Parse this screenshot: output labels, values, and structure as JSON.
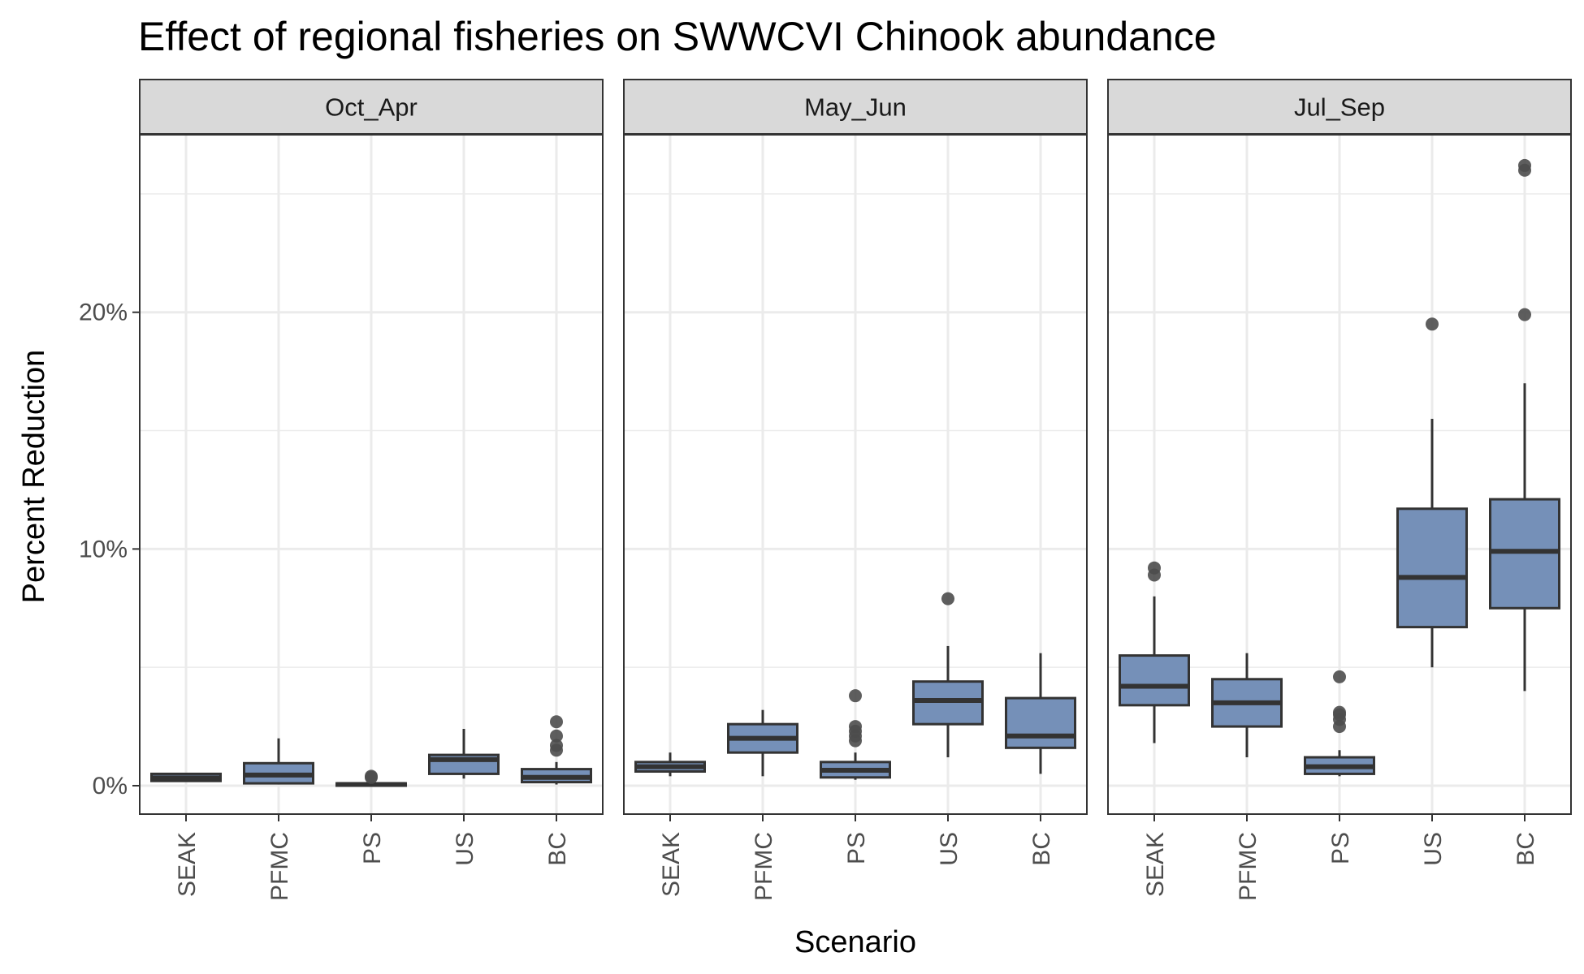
{
  "chart_data": {
    "type": "box",
    "title": "Effect of regional fisheries on SWWCVI Chinook abundance",
    "xlabel": "Scenario",
    "ylabel": "Percent Reduction",
    "y_ticks": [
      "0%",
      "10%",
      "20%"
    ],
    "y_tick_values": [
      0,
      10,
      20
    ],
    "ylim": [
      -1.2,
      27.5
    ],
    "grid": true,
    "categories": [
      "SEAK",
      "PFMC",
      "PS",
      "US",
      "BC"
    ],
    "colors": {
      "box_fill": "#7590b8",
      "box_edge": "#333333",
      "strip_fill": "#d9d9d9",
      "grid": "#ebebeb",
      "outlier": "#4d4d4d"
    },
    "panels": [
      {
        "label": "Oct_Apr",
        "boxes": [
          {
            "category": "SEAK",
            "whisker_low": 0.2,
            "q1": 0.2,
            "median": 0.33,
            "q3": 0.5,
            "whisker_high": 0.5,
            "outliers": []
          },
          {
            "category": "PFMC",
            "whisker_low": 0.05,
            "q1": 0.1,
            "median": 0.45,
            "q3": 0.95,
            "whisker_high": 2.0,
            "outliers": []
          },
          {
            "category": "PS",
            "whisker_low": 0.0,
            "q1": 0.0,
            "median": 0.05,
            "q3": 0.1,
            "whisker_high": 0.15,
            "outliers": [
              0.35,
              0.4
            ]
          },
          {
            "category": "US",
            "whisker_low": 0.3,
            "q1": 0.5,
            "median": 1.1,
            "q3": 1.3,
            "whisker_high": 2.4,
            "outliers": []
          },
          {
            "category": "BC",
            "whisker_low": 0.05,
            "q1": 0.15,
            "median": 0.35,
            "q3": 0.7,
            "whisker_high": 1.0,
            "outliers": [
              1.5,
              1.7,
              2.1,
              2.7
            ]
          }
        ]
      },
      {
        "label": "May_Jun",
        "boxes": [
          {
            "category": "SEAK",
            "whisker_low": 0.4,
            "q1": 0.6,
            "median": 0.8,
            "q3": 1.0,
            "whisker_high": 1.4,
            "outliers": []
          },
          {
            "category": "PFMC",
            "whisker_low": 0.4,
            "q1": 1.4,
            "median": 2.0,
            "q3": 2.6,
            "whisker_high": 3.2,
            "outliers": []
          },
          {
            "category": "PS",
            "whisker_low": 0.25,
            "q1": 0.35,
            "median": 0.65,
            "q3": 1.0,
            "whisker_high": 1.4,
            "outliers": [
              1.9,
              2.1,
              2.3,
              2.5,
              3.8
            ]
          },
          {
            "category": "US",
            "whisker_low": 1.2,
            "q1": 2.6,
            "median": 3.6,
            "q3": 4.4,
            "whisker_high": 5.9,
            "outliers": [
              7.9
            ]
          },
          {
            "category": "BC",
            "whisker_low": 0.5,
            "q1": 1.6,
            "median": 2.1,
            "q3": 3.7,
            "whisker_high": 5.6,
            "outliers": []
          }
        ]
      },
      {
        "label": "Jul_Sep",
        "boxes": [
          {
            "category": "SEAK",
            "whisker_low": 1.8,
            "q1": 3.4,
            "median": 4.2,
            "q3": 5.5,
            "whisker_high": 8.0,
            "outliers": [
              8.9,
              9.2
            ]
          },
          {
            "category": "PFMC",
            "whisker_low": 1.2,
            "q1": 2.5,
            "median": 3.5,
            "q3": 4.5,
            "whisker_high": 5.6,
            "outliers": []
          },
          {
            "category": "PS",
            "whisker_low": 0.4,
            "q1": 0.5,
            "median": 0.8,
            "q3": 1.2,
            "whisker_high": 1.5,
            "outliers": [
              2.5,
              2.8,
              3.0,
              3.1,
              4.6
            ]
          },
          {
            "category": "US",
            "whisker_low": 5.0,
            "q1": 6.7,
            "median": 8.8,
            "q3": 11.7,
            "whisker_high": 15.5,
            "outliers": [
              19.5
            ]
          },
          {
            "category": "BC",
            "whisker_low": 4.0,
            "q1": 7.5,
            "median": 9.9,
            "q3": 12.1,
            "whisker_high": 17.0,
            "outliers": [
              19.9,
              26.0,
              26.2
            ]
          }
        ]
      }
    ]
  }
}
